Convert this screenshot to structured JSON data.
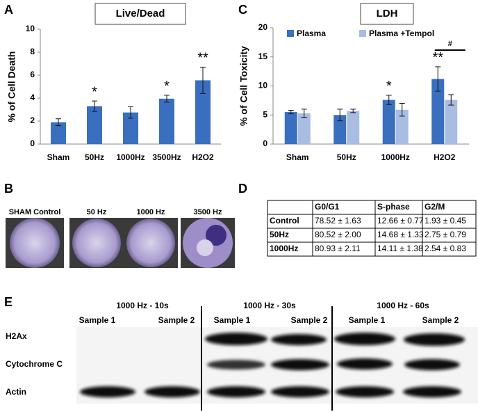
{
  "chart_data": [
    {
      "type": "bar",
      "title": "Live/Dead",
      "ylabel": "% of Cell Death",
      "categories": [
        "Sham",
        "50Hz",
        "1000Hz",
        "3500Hz",
        "H2O2"
      ],
      "values": [
        1.9,
        3.3,
        2.75,
        3.95,
        5.55
      ],
      "errors": [
        0.3,
        0.45,
        0.5,
        0.3,
        1.15
      ],
      "significance": [
        null,
        "*",
        null,
        "*",
        "**"
      ],
      "color": "#3a6fbf",
      "ylim": [
        0,
        10
      ],
      "yticks": [
        0,
        2,
        4,
        6,
        8,
        10
      ]
    },
    {
      "type": "bar",
      "title": "LDH",
      "ylabel": "% of Cell Toxicity",
      "categories": [
        "Sham",
        "50Hz",
        "1000Hz",
        "H2O2"
      ],
      "series": [
        {
          "name": "Plasma",
          "color": "#3a6fbf",
          "values": [
            5.5,
            5.0,
            7.6,
            11.2
          ],
          "errors": [
            0.3,
            1.0,
            0.8,
            2.1
          ],
          "significance": [
            null,
            null,
            "*",
            "**"
          ]
        },
        {
          "name": "Plasma +Tempol",
          "color": "#a9bde3",
          "values": [
            5.3,
            5.7,
            5.9,
            7.6
          ],
          "errors": [
            0.7,
            0.3,
            1.1,
            0.9
          ],
          "significance": [
            null,
            null,
            null,
            null
          ]
        }
      ],
      "annotations": [
        "#"
      ],
      "ylim": [
        0,
        20
      ],
      "yticks": [
        0,
        5,
        10,
        15,
        20
      ]
    }
  ],
  "panel_labels": [
    "A",
    "B",
    "C",
    "D",
    "E"
  ],
  "images": {
    "labels": [
      "SHAM Control",
      "50 Hz",
      "1000 Hz",
      "3500 Hz"
    ]
  },
  "table": {
    "header": [
      "",
      "G0/G1",
      "S-phase",
      "G2/M"
    ],
    "rows": [
      [
        "Control",
        "78.52 ± 1.63",
        "12.66 ± 0.77",
        "1.93 ± 0.45"
      ],
      [
        "50Hz",
        "80.52 ± 2.00",
        "14.68 ± 1.33",
        "2.75 ± 0.79"
      ],
      [
        "1000Hz",
        "80.93 ± 2.11",
        "14.11 ± 1.38",
        "2.54 ± 0.83"
      ]
    ]
  },
  "blot": {
    "groups": [
      "1000 Hz - 10s",
      "1000 Hz - 30s",
      "1000 Hz - 60s"
    ],
    "samples": [
      "Sample 1",
      "Sample 2",
      "Sample 1",
      "Sample 2",
      "Sample 1",
      "Sample 2"
    ],
    "rows": [
      "H2Ax",
      "Cytochrome C",
      "Actin"
    ]
  }
}
